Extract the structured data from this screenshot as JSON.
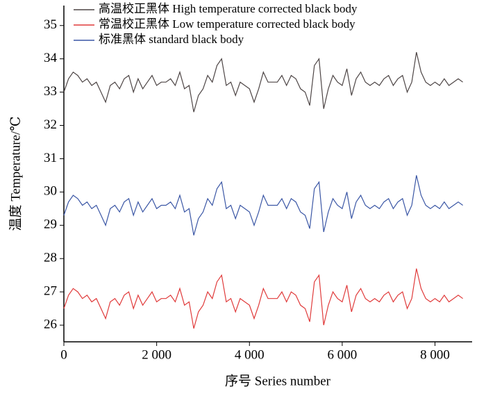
{
  "chart_data": {
    "type": "line",
    "xlabel": "序号 Series number",
    "ylabel": "温度 Temperature/℃",
    "x": [
      0,
      100,
      200,
      300,
      400,
      500,
      600,
      700,
      800,
      900,
      1000,
      1100,
      1200,
      1300,
      1400,
      1500,
      1600,
      1700,
      1800,
      1900,
      2000,
      2100,
      2200,
      2300,
      2400,
      2500,
      2600,
      2700,
      2800,
      2900,
      3000,
      3100,
      3200,
      3300,
      3400,
      3500,
      3600,
      3700,
      3800,
      3900,
      4000,
      4100,
      4200,
      4300,
      4400,
      4500,
      4600,
      4700,
      4800,
      4900,
      5000,
      5100,
      5200,
      5300,
      5400,
      5500,
      5600,
      5700,
      5800,
      5900,
      6000,
      6100,
      6200,
      6300,
      6400,
      6500,
      6600,
      6700,
      6800,
      6900,
      7000,
      7100,
      7200,
      7300,
      7400,
      7500,
      7600,
      7700,
      7800,
      7900,
      8000,
      8100,
      8200,
      8300,
      8400,
      8500,
      8600
    ],
    "series": [
      {
        "name": "高温校正黑体 High temperature corrected black body",
        "color": "#4d4545",
        "values": [
          33.0,
          33.4,
          33.6,
          33.5,
          33.3,
          33.4,
          33.2,
          33.3,
          33.0,
          32.7,
          33.2,
          33.3,
          33.1,
          33.4,
          33.5,
          33.0,
          33.4,
          33.1,
          33.3,
          33.5,
          33.2,
          33.3,
          33.3,
          33.4,
          33.2,
          33.6,
          33.1,
          33.2,
          32.4,
          32.9,
          33.1,
          33.5,
          33.3,
          33.8,
          34.0,
          33.2,
          33.3,
          32.9,
          33.3,
          33.2,
          33.1,
          32.7,
          33.1,
          33.6,
          33.3,
          33.3,
          33.3,
          33.5,
          33.2,
          33.5,
          33.4,
          33.1,
          33.0,
          32.6,
          33.8,
          34.0,
          32.5,
          33.1,
          33.5,
          33.3,
          33.2,
          33.7,
          32.9,
          33.4,
          33.6,
          33.3,
          33.2,
          33.3,
          33.2,
          33.4,
          33.5,
          33.2,
          33.4,
          33.5,
          33.0,
          33.3,
          34.2,
          33.6,
          33.3,
          33.2,
          33.3,
          33.2,
          33.4,
          33.2,
          33.3,
          33.4,
          33.3
        ]
      },
      {
        "name": "常温校正黑体 Low temperature corrected black body",
        "color": "#e03a3a",
        "values": [
          26.5,
          26.9,
          27.1,
          27.0,
          26.8,
          26.9,
          26.7,
          26.8,
          26.5,
          26.2,
          26.7,
          26.8,
          26.6,
          26.9,
          27.0,
          26.5,
          26.9,
          26.6,
          26.8,
          27.0,
          26.7,
          26.8,
          26.8,
          26.9,
          26.7,
          27.1,
          26.6,
          26.7,
          25.9,
          26.4,
          26.6,
          27.0,
          26.8,
          27.3,
          27.5,
          26.7,
          26.8,
          26.4,
          26.8,
          26.7,
          26.6,
          26.2,
          26.6,
          27.1,
          26.8,
          26.8,
          26.8,
          27.0,
          26.7,
          27.0,
          26.9,
          26.6,
          26.5,
          26.1,
          27.3,
          27.5,
          26.0,
          26.6,
          27.0,
          26.8,
          26.7,
          27.2,
          26.4,
          26.9,
          27.1,
          26.8,
          26.7,
          26.8,
          26.7,
          26.9,
          27.0,
          26.7,
          26.9,
          27.0,
          26.5,
          26.8,
          27.7,
          27.1,
          26.8,
          26.7,
          26.8,
          26.7,
          26.9,
          26.7,
          26.8,
          26.9,
          26.8
        ]
      },
      {
        "name": "标准黑体 standard black body",
        "color": "#3a56a5",
        "values": [
          29.3,
          29.7,
          29.9,
          29.8,
          29.6,
          29.7,
          29.5,
          29.6,
          29.3,
          29.0,
          29.5,
          29.6,
          29.4,
          29.7,
          29.8,
          29.3,
          29.7,
          29.4,
          29.6,
          29.8,
          29.5,
          29.6,
          29.6,
          29.7,
          29.5,
          29.9,
          29.4,
          29.5,
          28.7,
          29.2,
          29.4,
          29.8,
          29.6,
          30.1,
          30.3,
          29.5,
          29.6,
          29.2,
          29.6,
          29.5,
          29.4,
          29.0,
          29.4,
          29.9,
          29.6,
          29.6,
          29.6,
          29.8,
          29.5,
          29.8,
          29.7,
          29.4,
          29.3,
          28.9,
          30.1,
          30.3,
          28.8,
          29.4,
          29.8,
          29.6,
          29.5,
          30.0,
          29.2,
          29.7,
          29.9,
          29.6,
          29.5,
          29.6,
          29.5,
          29.7,
          29.8,
          29.5,
          29.7,
          29.8,
          29.3,
          29.6,
          30.5,
          29.9,
          29.6,
          29.5,
          29.6,
          29.5,
          29.7,
          29.5,
          29.6,
          29.7,
          29.6
        ]
      }
    ],
    "xlim": [
      0,
      8800
    ],
    "ylim": [
      25.5,
      35.6
    ],
    "xticks": [
      0,
      {
        "value": 2000,
        "label": "2 000"
      },
      {
        "value": 4000,
        "label": "4 000"
      },
      {
        "value": 6000,
        "label": "6 000"
      },
      {
        "value": 8000,
        "label": "8 000"
      }
    ],
    "yticks": [
      26,
      27,
      28,
      29,
      30,
      31,
      32,
      33,
      34,
      35
    ],
    "legend": "upper left",
    "grid": false
  }
}
